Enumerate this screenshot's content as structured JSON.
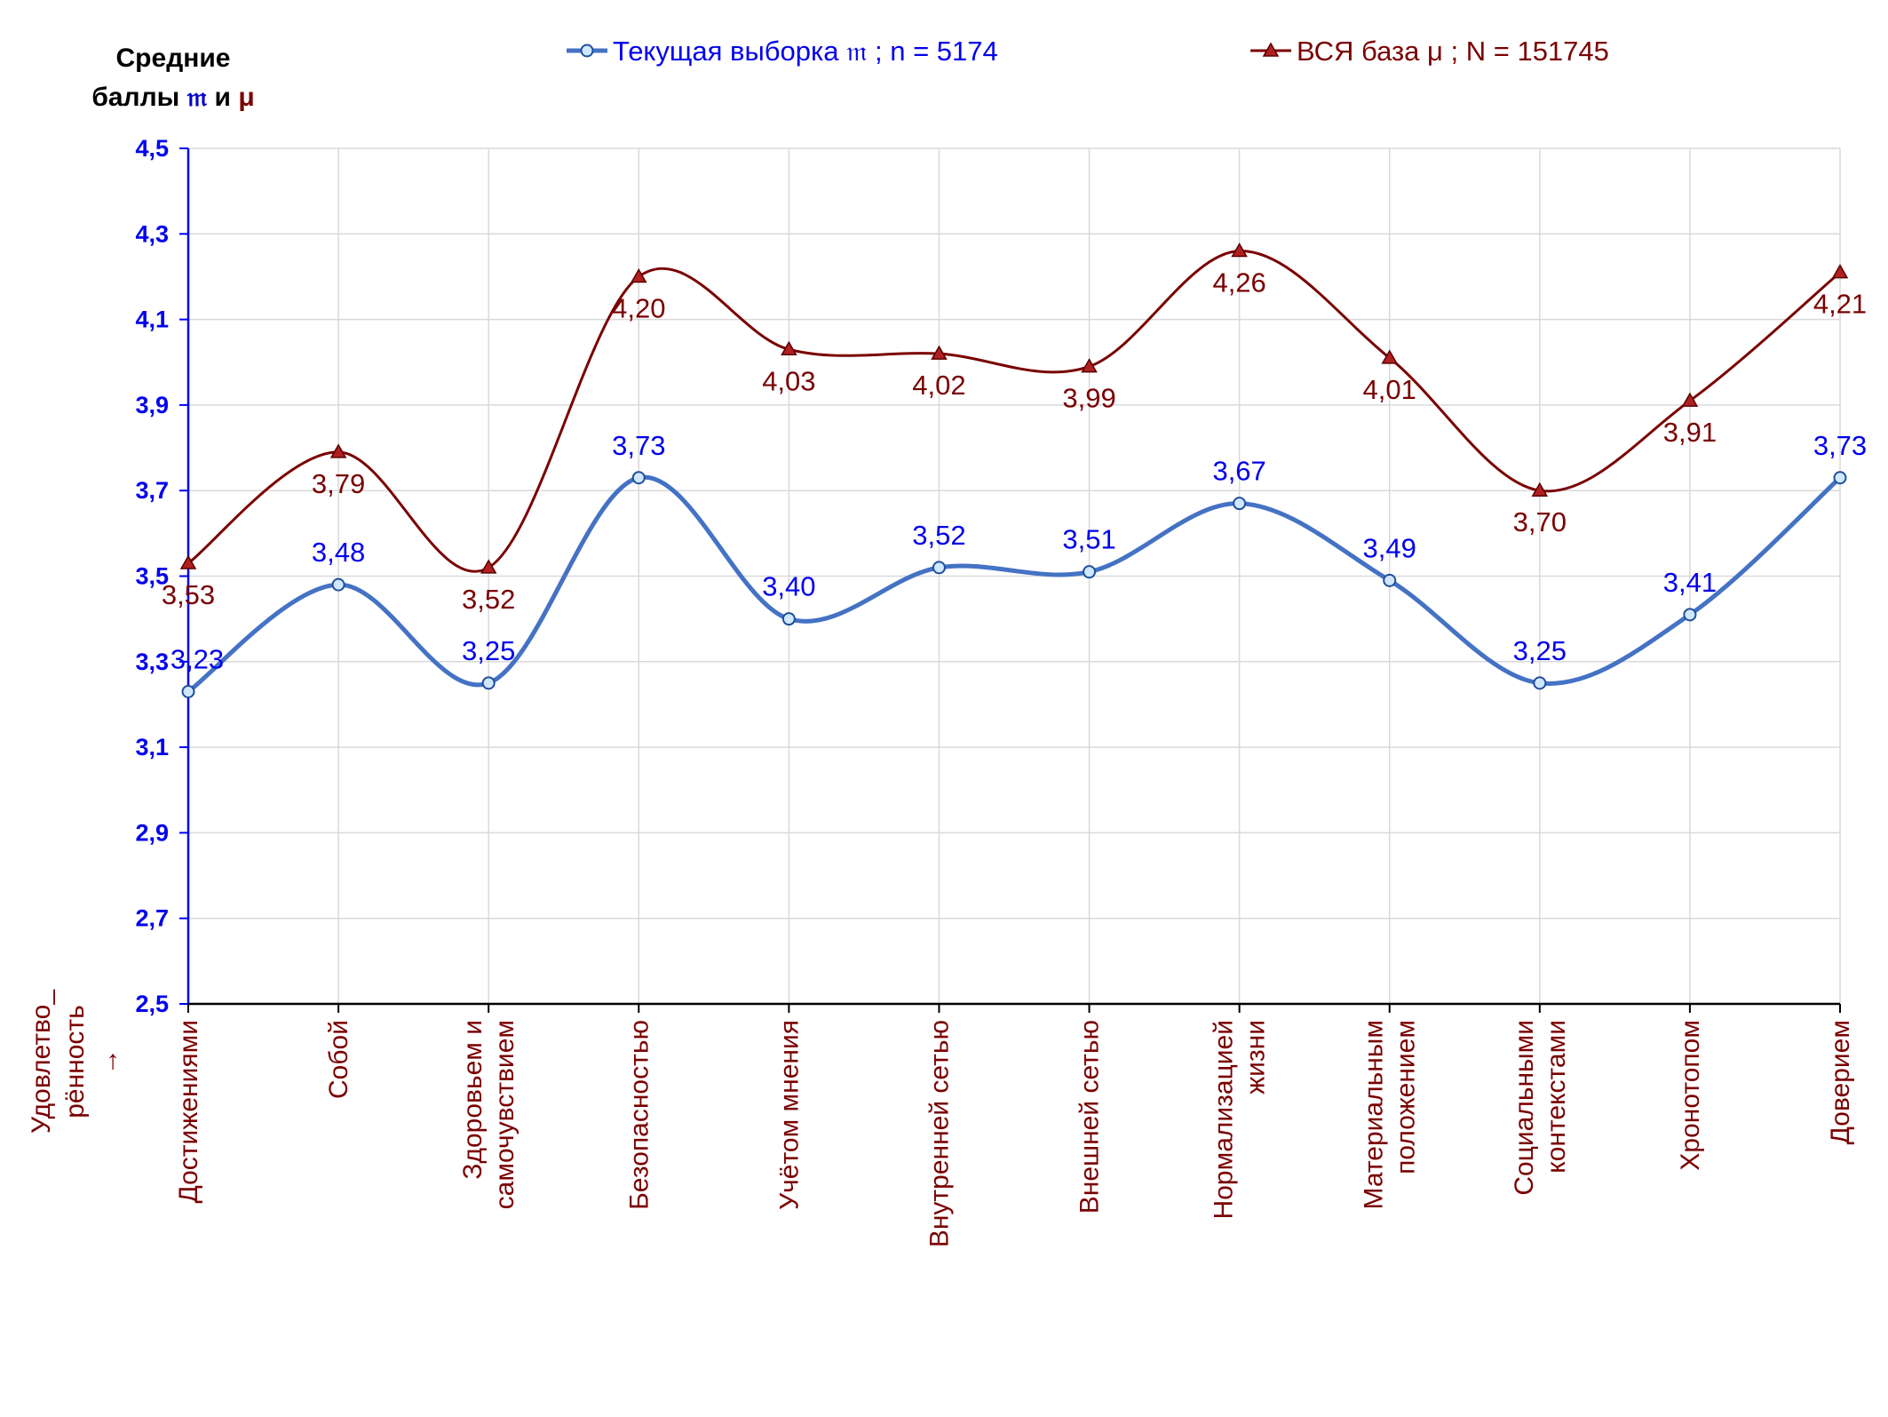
{
  "chart_data": {
    "type": "line",
    "ylabel_line1": "Средние",
    "ylabel_line2": "баллы",
    "ylabel_sym1": "𝔪",
    "ylabel_and": " и ",
    "ylabel_sym2": "μ",
    "xlabel_line1": "Удовлетво_",
    "xlabel_line2": "рённость",
    "xlabel_arrow": "→",
    "ylim": [
      2.5,
      4.5
    ],
    "yticks": [
      "2,5",
      "2,7",
      "2,9",
      "3,1",
      "3,3",
      "3,5",
      "3,7",
      "3,9",
      "4,1",
      "4,3",
      "4,5"
    ],
    "ytick_values": [
      2.5,
      2.7,
      2.9,
      3.1,
      3.3,
      3.5,
      3.7,
      3.9,
      4.1,
      4.3,
      4.5
    ],
    "grid": true,
    "legend_position": "top",
    "categories": [
      [
        "Достижениями"
      ],
      [
        "Собой"
      ],
      [
        "Здоровьем и",
        "самочувствием"
      ],
      [
        "Безопасностью"
      ],
      [
        "Учётом мнения"
      ],
      [
        "Внутренней сетью"
      ],
      [
        "Внешней сетью"
      ],
      [
        "Нормализацией",
        "жизни"
      ],
      [
        "Материальным",
        "положением"
      ],
      [
        "Социальными",
        "контекстами"
      ],
      [
        "Хронотопом"
      ],
      [
        "Доверием"
      ]
    ],
    "series": [
      {
        "name": "Текущая выборка 𝔪 ; n = 5174",
        "color": "#4472c4",
        "label_color": "#0000ee",
        "marker": "circle",
        "values": [
          3.23,
          3.48,
          3.25,
          3.73,
          3.4,
          3.52,
          3.51,
          3.67,
          3.49,
          3.25,
          3.41,
          3.73
        ],
        "labels": [
          "3,23",
          "3,48",
          "3,25",
          "3,73",
          "3,40",
          "3,52",
          "3,51",
          "3,67",
          "3,49",
          "3,25",
          "3,41",
          "3,73"
        ]
      },
      {
        "name": "ВСЯ база μ ; N = 151745",
        "color": "#7a0000",
        "label_color": "#7a0000",
        "marker": "triangle",
        "values": [
          3.53,
          3.79,
          3.52,
          4.2,
          4.03,
          4.02,
          3.99,
          4.26,
          4.01,
          3.7,
          3.91,
          4.21
        ],
        "labels": [
          "3,53",
          "3,79",
          "3,52",
          "4,20",
          "4,03",
          "4,02",
          "3,99",
          "4,26",
          "4,01",
          "3,70",
          "3,91",
          "4,21"
        ]
      }
    ]
  }
}
